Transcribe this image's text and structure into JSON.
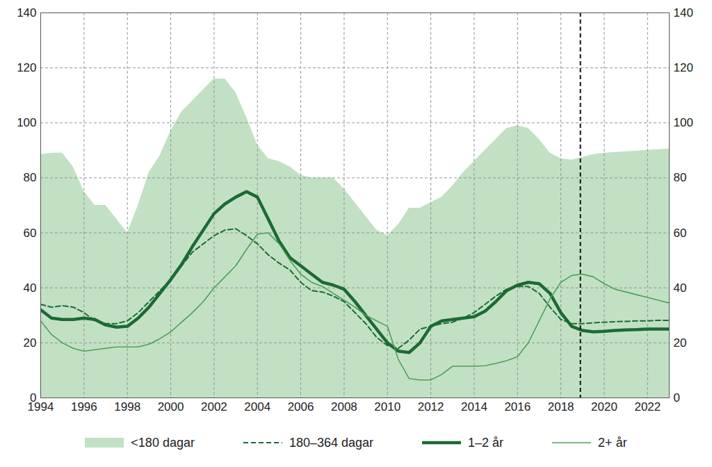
{
  "chart_data": {
    "type": "line",
    "x": [
      1994,
      1994.5,
      1995,
      1995.5,
      1996,
      1996.5,
      1997,
      1997.5,
      1998,
      1998.5,
      1999,
      1999.5,
      2000,
      2000.5,
      2001,
      2001.5,
      2002,
      2002.5,
      2003,
      2003.5,
      2004,
      2004.5,
      2005,
      2005.5,
      2006,
      2006.5,
      2007,
      2007.5,
      2008,
      2008.5,
      2009,
      2009.5,
      2010,
      2010.5,
      2011,
      2011.5,
      2012,
      2012.5,
      2013,
      2013.5,
      2014,
      2014.5,
      2015,
      2015.5,
      2016,
      2016.5,
      2017,
      2017.5,
      2018,
      2018.5,
      2019,
      2019.5,
      2020,
      2020.5,
      2021,
      2021.5,
      2022,
      2022.5,
      2023
    ],
    "series": [
      {
        "name": "<180 dagar",
        "type": "area",
        "color": "#c2e1c4",
        "values": [
          88.5,
          89,
          89,
          84,
          75,
          70,
          70,
          65,
          60,
          70,
          82,
          88,
          97,
          104,
          108,
          112,
          116,
          116,
          111,
          102,
          92,
          87,
          86,
          84,
          81,
          80,
          80,
          80,
          76,
          71,
          66,
          61,
          59,
          63,
          69,
          69,
          71,
          73,
          77,
          82,
          86,
          90,
          94,
          98,
          99,
          98,
          94,
          89,
          87,
          86.5,
          87.5,
          88.5,
          89,
          89.3,
          89.5,
          89.8,
          90,
          90.3,
          90.5
        ]
      },
      {
        "name": "180–364 dagar",
        "type": "line",
        "line_style": "dashed",
        "color": "#1d6a38",
        "values": [
          34,
          33,
          33.5,
          33,
          31,
          28,
          27,
          27,
          28,
          31,
          35,
          39,
          43,
          48,
          53,
          56,
          59,
          61,
          61.5,
          59,
          56,
          52,
          49,
          46.5,
          42,
          39,
          38.5,
          37,
          35,
          31,
          27,
          22,
          19,
          18,
          21,
          25,
          26,
          27,
          27.5,
          29,
          31,
          34,
          37,
          39.5,
          40.5,
          40.5,
          38,
          33,
          28.5,
          27,
          27,
          27.3,
          27.5,
          27.7,
          27.8,
          28,
          28,
          28.2,
          28.2
        ]
      },
      {
        "name": "1–2 år",
        "type": "line",
        "line_style": "solid",
        "color": "#1b6a34",
        "values": [
          32,
          29,
          28.5,
          28.5,
          29,
          28.5,
          26.5,
          25.7,
          26,
          29,
          33,
          38,
          43,
          48.5,
          55,
          61,
          67,
          70.5,
          73,
          75,
          73,
          65,
          57,
          51,
          48,
          45,
          42,
          41,
          39.5,
          35,
          30,
          25,
          20,
          17,
          16.5,
          20,
          26,
          28,
          28.5,
          29,
          29.5,
          31.5,
          35,
          39,
          41,
          42,
          41.5,
          38,
          31,
          26,
          24.5,
          24,
          24.2,
          24.5,
          24.7,
          24.8,
          25,
          25,
          25
        ]
      },
      {
        "name": "2+ år",
        "type": "line",
        "line_style": "solid",
        "color": "#4d9f58",
        "values": [
          28,
          23,
          20,
          18,
          17,
          17.5,
          18,
          18.5,
          18.5,
          18.5,
          19.5,
          21.5,
          24,
          27.5,
          31,
          35,
          40,
          44,
          48,
          54,
          59.5,
          60,
          56,
          50,
          45,
          42,
          40.5,
          38,
          35.5,
          33,
          30,
          28,
          26,
          14,
          7,
          6.5,
          6.5,
          8.5,
          11.5,
          11.5,
          11.5,
          11.7,
          12.5,
          13.5,
          15,
          20,
          28,
          36,
          42,
          44.5,
          45,
          44,
          41.5,
          39.5,
          38.5,
          37.5,
          36.5,
          35.5,
          34.5
        ]
      }
    ],
    "xlim": [
      1994,
      2023
    ],
    "xticks": [
      1994,
      1996,
      1998,
      2000,
      2002,
      2004,
      2006,
      2008,
      2010,
      2012,
      2014,
      2016,
      2018,
      2020,
      2022
    ],
    "ylim": [
      0,
      140
    ],
    "yticks": [
      0,
      20,
      40,
      60,
      80,
      100,
      120,
      140
    ],
    "y2lim": [
      0,
      140
    ],
    "y2ticks": [
      0,
      20,
      40,
      60,
      80,
      100,
      120,
      140
    ],
    "vlines": [
      2018.9
    ],
    "grid": true,
    "legend": "bottom"
  }
}
